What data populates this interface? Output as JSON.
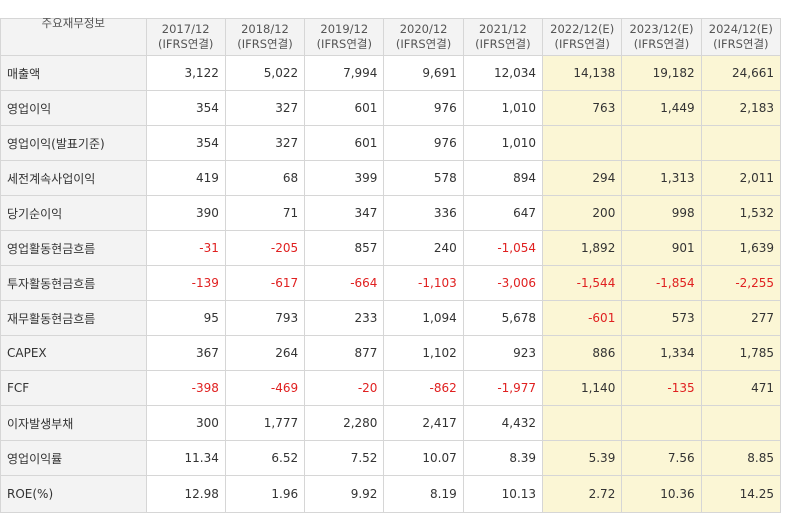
{
  "table": {
    "title": "주요재무정보",
    "columns": [
      {
        "period": "2017/12",
        "basis": "(IFRS연결)",
        "estimate": false
      },
      {
        "period": "2018/12",
        "basis": "(IFRS연결)",
        "estimate": false
      },
      {
        "period": "2019/12",
        "basis": "(IFRS연결)",
        "estimate": false
      },
      {
        "period": "2020/12",
        "basis": "(IFRS연결)",
        "estimate": false
      },
      {
        "period": "2021/12",
        "basis": "(IFRS연결)",
        "estimate": false
      },
      {
        "period": "2022/12(E)",
        "basis": "(IFRS연결)",
        "estimate": true
      },
      {
        "period": "2023/12(E)",
        "basis": "(IFRS연결)",
        "estimate": true
      },
      {
        "period": "2024/12(E)",
        "basis": "(IFRS연결)",
        "estimate": true
      }
    ],
    "rows": [
      {
        "label": "매출액",
        "values": [
          "3,122",
          "5,022",
          "7,994",
          "9,691",
          "12,034",
          "14,138",
          "19,182",
          "24,661"
        ]
      },
      {
        "label": "영업이익",
        "values": [
          "354",
          "327",
          "601",
          "976",
          "1,010",
          "763",
          "1,449",
          "2,183"
        ]
      },
      {
        "label": "영업이익(발표기준)",
        "values": [
          "354",
          "327",
          "601",
          "976",
          "1,010",
          "",
          "",
          ""
        ]
      },
      {
        "label": "세전계속사업이익",
        "values": [
          "419",
          "68",
          "399",
          "578",
          "894",
          "294",
          "1,313",
          "2,011"
        ]
      },
      {
        "label": "당기순이익",
        "values": [
          "390",
          "71",
          "347",
          "336",
          "647",
          "200",
          "998",
          "1,532"
        ]
      },
      {
        "label": "영업활동현금흐름",
        "values": [
          "-31",
          "-205",
          "857",
          "240",
          "-1,054",
          "1,892",
          "901",
          "1,639"
        ]
      },
      {
        "label": "투자활동현금흐름",
        "values": [
          "-139",
          "-617",
          "-664",
          "-1,103",
          "-3,006",
          "-1,544",
          "-1,854",
          "-2,255"
        ]
      },
      {
        "label": "재무활동현금흐름",
        "values": [
          "95",
          "793",
          "233",
          "1,094",
          "5,678",
          "-601",
          "573",
          "277"
        ]
      },
      {
        "label": "CAPEX",
        "values": [
          "367",
          "264",
          "877",
          "1,102",
          "923",
          "886",
          "1,334",
          "1,785"
        ]
      },
      {
        "label": "FCF",
        "values": [
          "-398",
          "-469",
          "-20",
          "-862",
          "-1,977",
          "1,140",
          "-135",
          "471"
        ]
      },
      {
        "label": "이자발생부채",
        "values": [
          "300",
          "1,777",
          "2,280",
          "2,417",
          "4,432",
          "",
          "",
          ""
        ]
      },
      {
        "label": "영업이익률",
        "values": [
          "11.34",
          "6.52",
          "7.52",
          "10.07",
          "8.39",
          "5.39",
          "7.56",
          "8.85"
        ]
      },
      {
        "label": "ROE(%)",
        "values": [
          "12.98",
          "1.96",
          "9.92",
          "8.19",
          "10.13",
          "2.72",
          "10.36",
          "14.25"
        ]
      }
    ]
  },
  "colors": {
    "negative": "#e02020",
    "estimate_bg": "#fbf6d5",
    "header_bg": "#f3f3f3"
  }
}
